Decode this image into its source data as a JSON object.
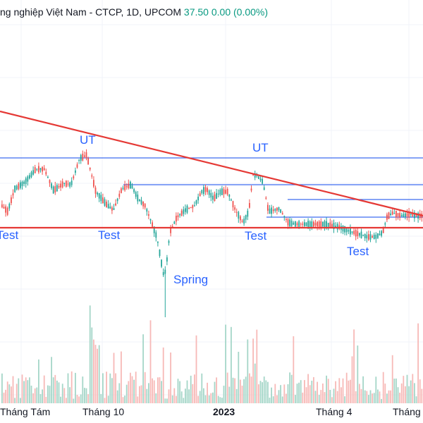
{
  "legend": {
    "title": "ng nghiệp Việt Nam - CTCP, 1D, UPCOM",
    "price": "37.50",
    "change": "0.00 (0.00%)"
  },
  "annotations": [
    "UT",
    "UT",
    "Test",
    "Test",
    "Test",
    "Test",
    "Spring"
  ],
  "x_axis": {
    "labels": [
      "Tháng Tám",
      "Tháng 10",
      "2023",
      "Tháng 4",
      "Tháng"
    ]
  },
  "colors": {
    "up": "#26a69a",
    "down": "#ef5350",
    "up_volume": "#a5d6c8",
    "down_volume": "#f7b9b7",
    "trendline": "#e53935",
    "level_line": "#3d6cf0",
    "annotation": "#2962ff",
    "grid": "#f0f3fa",
    "legend_change": "#089981"
  },
  "chart_data": {
    "type": "candlestick",
    "symbol_exchange": "UPCOM",
    "interval": "1D",
    "last_price": 37.5,
    "change": 0.0,
    "change_percent": 0.0,
    "grid": true
  }
}
